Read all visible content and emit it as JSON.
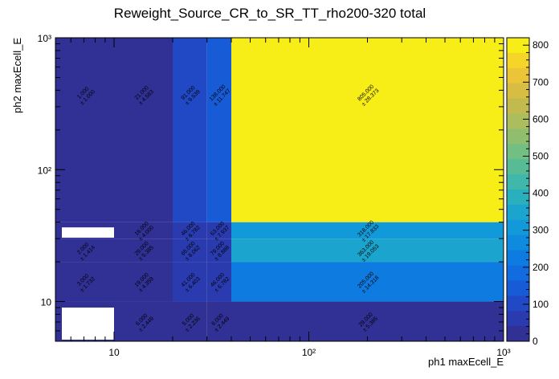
{
  "chart_data": {
    "type": "heatmap",
    "title": "Reweight_Source_CR_to_SR_TT_rho200-320 total",
    "xlabel": "ph1 maxEcell_E",
    "ylabel": "ph2 maxEcell_E",
    "x_scale": "log",
    "y_scale": "log",
    "xlim": [
      5,
      1000
    ],
    "ylim": [
      5,
      1000
    ],
    "x_edges": [
      5,
      10,
      20,
      30,
      40,
      1000
    ],
    "y_edges": [
      5,
      10,
      20,
      30,
      40,
      1000
    ],
    "x_tick_labels": [
      "10",
      "10²",
      "10³"
    ],
    "y_tick_labels": [
      "10",
      "10²",
      "10³"
    ],
    "z_range": [
      0,
      820
    ],
    "colorbar_ticks": [
      "0",
      "100",
      "200",
      "300",
      "400",
      "500",
      "600",
      "700",
      "800"
    ],
    "cells": [
      {
        "ix": 0,
        "iy": 0,
        "value": null,
        "label": "",
        "err": ""
      },
      {
        "ix": 1,
        "iy": 0,
        "value": 6,
        "label": "6.000",
        "err": "± 2.449"
      },
      {
        "ix": 2,
        "iy": 0,
        "value": 5,
        "label": "5.000",
        "err": "± 2.236"
      },
      {
        "ix": 3,
        "iy": 0,
        "value": 6,
        "label": "6.000",
        "err": "± 2.449"
      },
      {
        "ix": 4,
        "iy": 0,
        "value": 29,
        "label": "29.000",
        "err": "± 5.385"
      },
      {
        "ix": 0,
        "iy": 1,
        "value": 3,
        "label": "3.000",
        "err": "± 1.732"
      },
      {
        "ix": 1,
        "iy": 1,
        "value": 19,
        "label": "19.000",
        "err": "± 4.359"
      },
      {
        "ix": 2,
        "iy": 1,
        "value": 41,
        "label": "41.000",
        "err": "± 6.403"
      },
      {
        "ix": 3,
        "iy": 1,
        "value": 46,
        "label": "46.000",
        "err": "± 6.782"
      },
      {
        "ix": 4,
        "iy": 1,
        "value": 205,
        "label": "205.000",
        "err": "± 14.318"
      },
      {
        "ix": 0,
        "iy": 2,
        "value": 2,
        "label": "2.000",
        "err": "± 1.414"
      },
      {
        "ix": 1,
        "iy": 2,
        "value": 29,
        "label": "29.000",
        "err": "± 5.385"
      },
      {
        "ix": 2,
        "iy": 2,
        "value": 65,
        "label": "65.000",
        "err": "± 8.062"
      },
      {
        "ix": 3,
        "iy": 2,
        "value": 79,
        "label": "79.000",
        "err": "± 8.888"
      },
      {
        "ix": 4,
        "iy": 2,
        "value": 363,
        "label": "363.000",
        "err": "± 19.053"
      },
      {
        "ix": 0,
        "iy": 3,
        "value": null,
        "label": "",
        "err": ""
      },
      {
        "ix": 1,
        "iy": 3,
        "value": 16,
        "label": "16.000",
        "err": "± 4.000"
      },
      {
        "ix": 2,
        "iy": 3,
        "value": 46,
        "label": "46.000",
        "err": "± 6.782"
      },
      {
        "ix": 3,
        "iy": 3,
        "value": 63,
        "label": "63.000",
        "err": "± 7.937"
      },
      {
        "ix": 4,
        "iy": 3,
        "value": 318,
        "label": "318.000",
        "err": "± 17.833"
      },
      {
        "ix": 0,
        "iy": 4,
        "value": 1,
        "label": "1.000",
        "err": "± 1.000"
      },
      {
        "ix": 1,
        "iy": 4,
        "value": 21,
        "label": "21.000",
        "err": "± 4.583"
      },
      {
        "ix": 2,
        "iy": 4,
        "value": 91,
        "label": "91.000",
        "err": "± 9.539"
      },
      {
        "ix": 3,
        "iy": 4,
        "value": 138,
        "label": "138.000",
        "err": "± 11.747"
      },
      {
        "ix": 4,
        "iy": 4,
        "value": 805,
        "label": "805.000",
        "err": "± 28.373"
      }
    ]
  }
}
